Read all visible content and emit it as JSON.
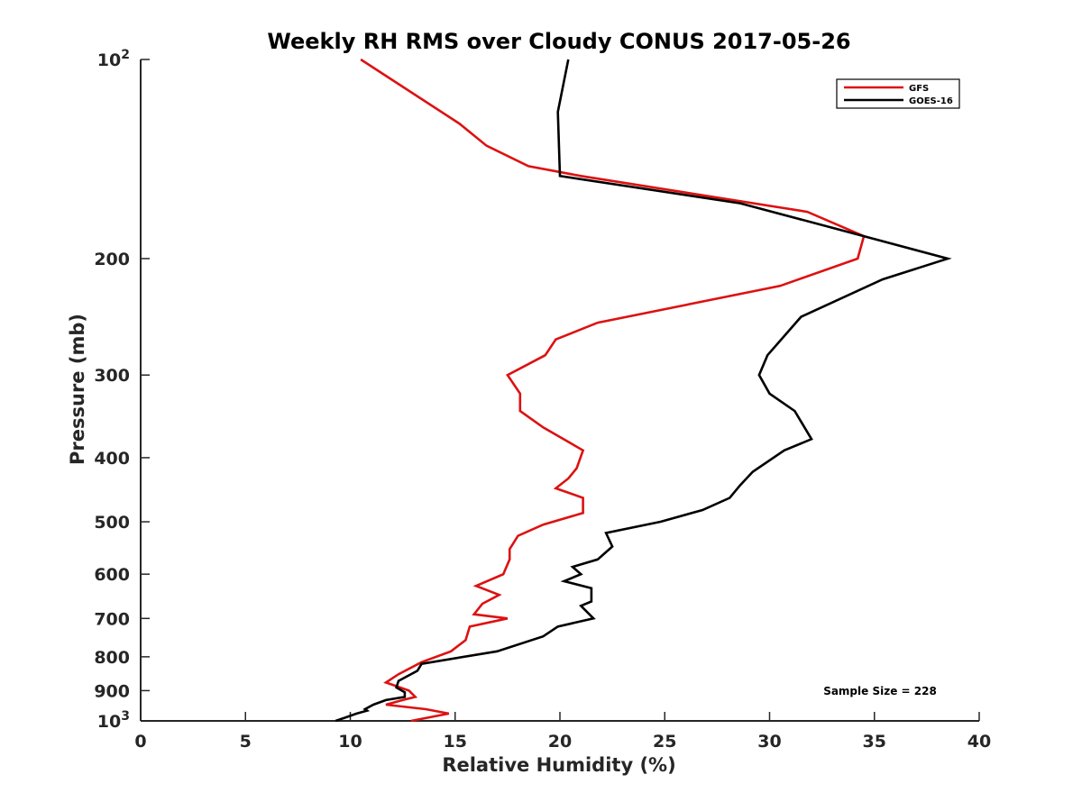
{
  "chart_data": {
    "type": "line",
    "title": "Weekly RH RMS over Cloudy CONUS 2017-05-26",
    "xlabel": "Relative Humidity (%)",
    "ylabel": "Pressure (mb)",
    "xlim": [
      0,
      40
    ],
    "ylim": [
      100,
      1000
    ],
    "yscale": "log",
    "y_reversed": true,
    "x_ticks": [
      0,
      5,
      10,
      15,
      20,
      25,
      30,
      35,
      40
    ],
    "y_ticks": [
      {
        "value": 100,
        "label": "10",
        "sup": "2"
      },
      {
        "value": 200,
        "label": "200",
        "sup": ""
      },
      {
        "value": 300,
        "label": "300",
        "sup": ""
      },
      {
        "value": 400,
        "label": "400",
        "sup": ""
      },
      {
        "value": 500,
        "label": "500",
        "sup": ""
      },
      {
        "value": 600,
        "label": "600",
        "sup": ""
      },
      {
        "value": 700,
        "label": "700",
        "sup": ""
      },
      {
        "value": 800,
        "label": "800",
        "sup": ""
      },
      {
        "value": 900,
        "label": "900",
        "sup": ""
      },
      {
        "value": 1000,
        "label": "10",
        "sup": "3"
      }
    ],
    "grid": false,
    "legend_position": "top-right",
    "annotation": "Sample Size = 228",
    "series": [
      {
        "name": "GFS",
        "color": "#dd1111",
        "points": [
          [
            10.5,
            100
          ],
          [
            15.2,
            125
          ],
          [
            16.5,
            135
          ],
          [
            18.5,
            145
          ],
          [
            21.0,
            150
          ],
          [
            31.8,
            170
          ],
          [
            34.5,
            185
          ],
          [
            34.2,
            200
          ],
          [
            30.5,
            220
          ],
          [
            21.8,
            250
          ],
          [
            19.8,
            265
          ],
          [
            19.3,
            280
          ],
          [
            17.5,
            300
          ],
          [
            18.1,
            320
          ],
          [
            18.1,
            340
          ],
          [
            19.2,
            360
          ],
          [
            21.1,
            390
          ],
          [
            20.8,
            415
          ],
          [
            20.4,
            430
          ],
          [
            19.8,
            445
          ],
          [
            21.1,
            460
          ],
          [
            21.1,
            485
          ],
          [
            19.2,
            505
          ],
          [
            18.0,
            525
          ],
          [
            17.6,
            550
          ],
          [
            17.6,
            570
          ],
          [
            17.3,
            600
          ],
          [
            16.0,
            625
          ],
          [
            17.1,
            645
          ],
          [
            16.3,
            665
          ],
          [
            15.9,
            690
          ],
          [
            17.5,
            700
          ],
          [
            15.7,
            720
          ],
          [
            15.5,
            755
          ],
          [
            14.8,
            785
          ],
          [
            13.4,
            815
          ],
          [
            12.3,
            850
          ],
          [
            11.7,
            875
          ],
          [
            12.8,
            900
          ],
          [
            13.1,
            920
          ],
          [
            12.5,
            930
          ],
          [
            11.7,
            945
          ],
          [
            13.6,
            960
          ],
          [
            14.7,
            975
          ],
          [
            12.9,
            1000
          ]
        ]
      },
      {
        "name": "GOES-16",
        "color": "#000000",
        "points": [
          [
            20.4,
            100
          ],
          [
            19.9,
            120
          ],
          [
            20.0,
            150
          ],
          [
            28.6,
            165
          ],
          [
            34.5,
            185
          ],
          [
            38.5,
            200
          ],
          [
            35.4,
            215
          ],
          [
            31.5,
            245
          ],
          [
            29.9,
            280
          ],
          [
            29.5,
            300
          ],
          [
            30.0,
            320
          ],
          [
            31.2,
            340
          ],
          [
            32.0,
            375
          ],
          [
            30.7,
            390
          ],
          [
            29.2,
            420
          ],
          [
            28.6,
            440
          ],
          [
            28.1,
            460
          ],
          [
            26.8,
            480
          ],
          [
            24.8,
            500
          ],
          [
            22.2,
            520
          ],
          [
            22.5,
            545
          ],
          [
            21.8,
            570
          ],
          [
            20.6,
            585
          ],
          [
            21.0,
            600
          ],
          [
            20.2,
            615
          ],
          [
            21.5,
            630
          ],
          [
            21.5,
            660
          ],
          [
            21.0,
            670
          ],
          [
            21.6,
            700
          ],
          [
            19.9,
            720
          ],
          [
            19.2,
            745
          ],
          [
            17.0,
            785
          ],
          [
            13.4,
            820
          ],
          [
            13.2,
            840
          ],
          [
            12.3,
            870
          ],
          [
            12.2,
            890
          ],
          [
            12.6,
            905
          ],
          [
            12.6,
            920
          ],
          [
            11.7,
            930
          ],
          [
            11.1,
            945
          ],
          [
            10.7,
            960
          ],
          [
            10.8,
            965
          ],
          [
            10.3,
            975
          ],
          [
            9.3,
            1000
          ]
        ]
      }
    ]
  }
}
